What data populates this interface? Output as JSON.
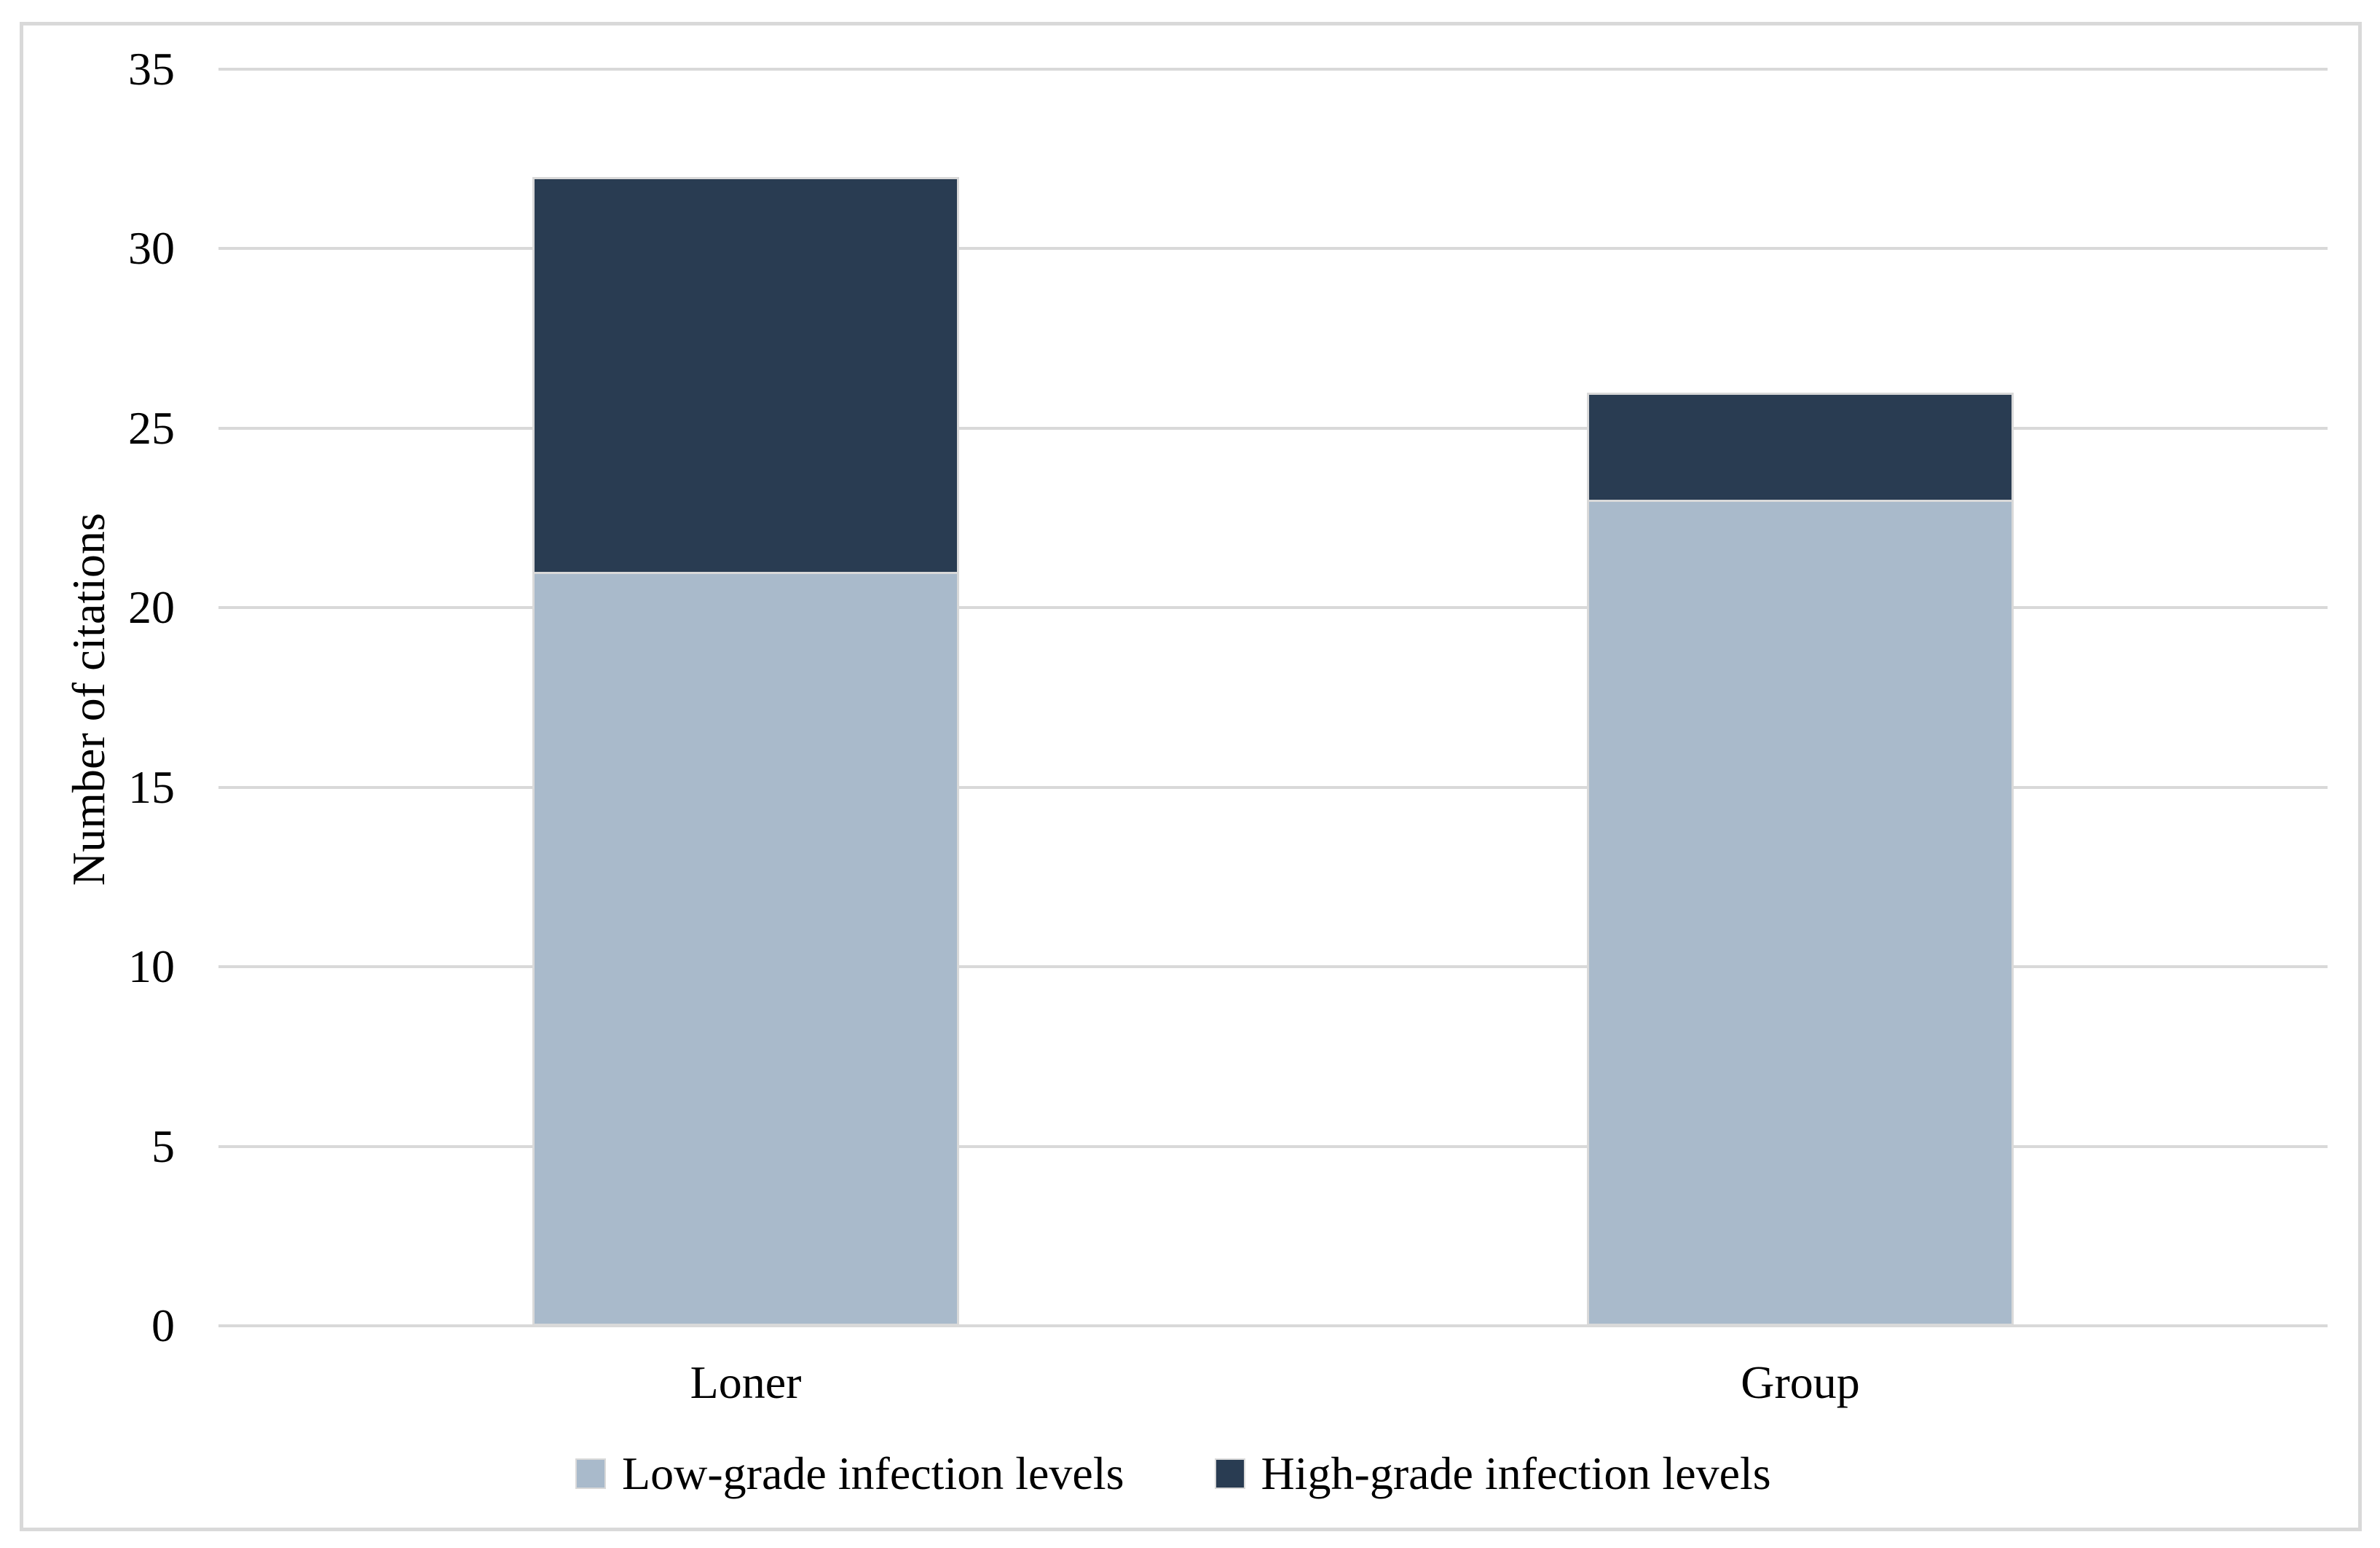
{
  "chart_data": {
    "type": "bar",
    "stacked": true,
    "orientation": "vertical",
    "title": "",
    "xlabel": "",
    "ylabel": "Number of citations",
    "categories": [
      "Loner",
      "Group"
    ],
    "series": [
      {
        "name": "Low-grade infection levels",
        "values": [
          21,
          23
        ],
        "color": "#a9bacb"
      },
      {
        "name": "High-grade infection levels",
        "values": [
          11,
          3
        ],
        "color": "#293c52"
      }
    ],
    "stack_totals": [
      32,
      26
    ],
    "ylim": [
      0,
      35
    ],
    "yticks": [
      0,
      5,
      10,
      15,
      20,
      25,
      30,
      35
    ],
    "grid": "horizontal",
    "legend_position": "bottom",
    "colors": {
      "background": "#ffffff",
      "gridline": "#d9d9d9",
      "frame_border": "#d9d9d9",
      "bar_outline": "#d9d9d9",
      "text": "#000000"
    }
  }
}
